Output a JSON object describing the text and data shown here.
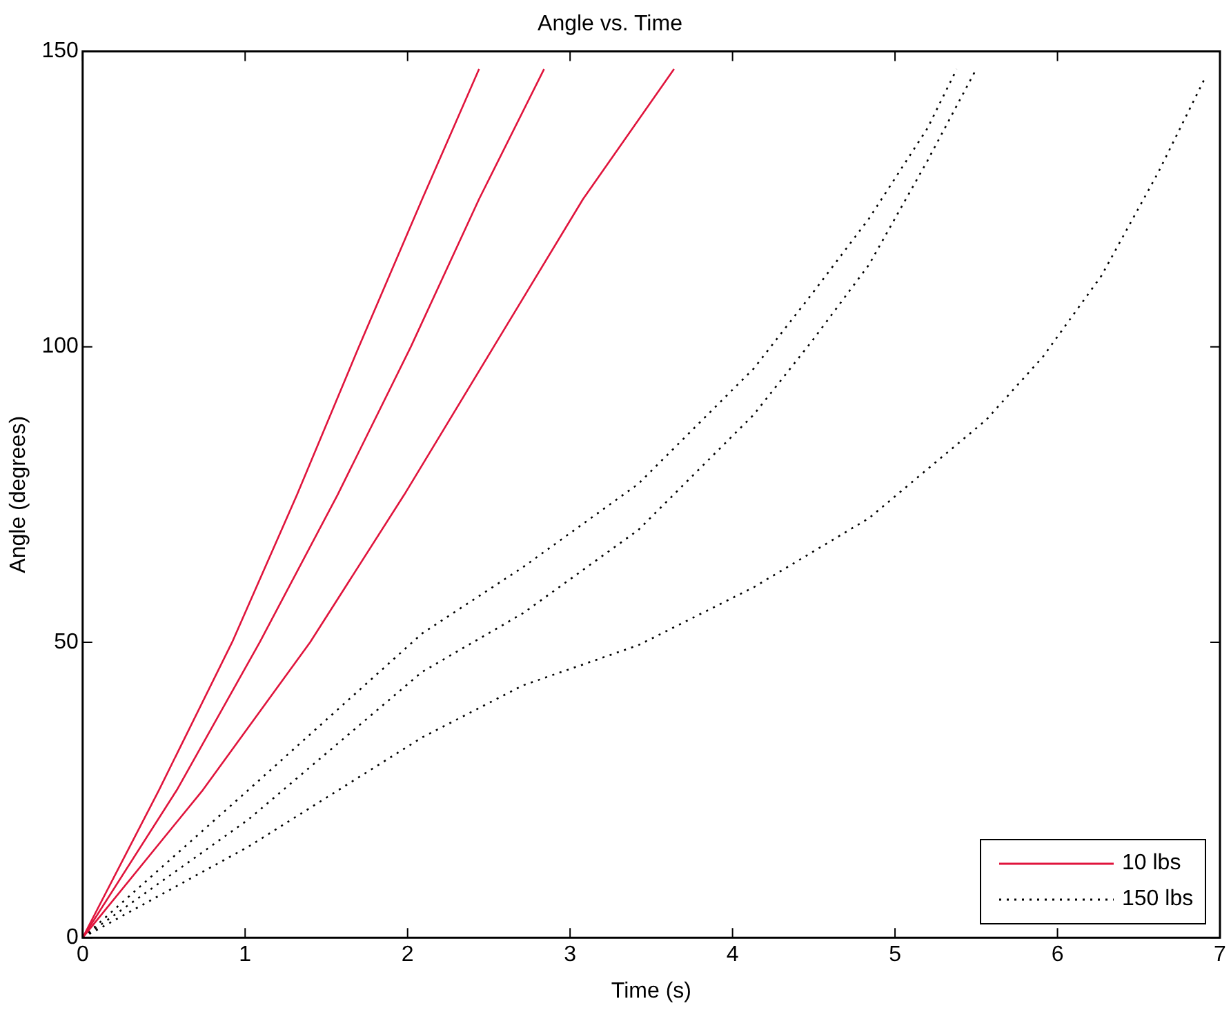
{
  "chart_data": {
    "type": "line",
    "title": "Angle vs. Time",
    "xlabel": "Time (s)",
    "ylabel": "Angle (degrees)",
    "xlim": [
      0,
      7
    ],
    "xticks": [
      0,
      1,
      2,
      3,
      4,
      5,
      6,
      7
    ],
    "ylim": [
      0,
      150
    ],
    "yticks": [
      0,
      50,
      100,
      150
    ],
    "legend": "bottom right",
    "marker": "none",
    "series": [
      {
        "name": "10 lbs",
        "color": "#e0143c",
        "line_style": "solid",
        "x": [
          0,
          0.47,
          0.92,
          1.32,
          1.7,
          2.09,
          2.44
        ],
        "values": [
          0,
          25,
          50,
          75,
          100,
          125,
          147
        ]
      },
      {
        "color": "#e0143c",
        "line_style": "solid",
        "x": [
          0,
          0.58,
          1.09,
          1.57,
          2.02,
          2.44,
          2.84
        ],
        "values": [
          0,
          25,
          50,
          75,
          100,
          125,
          147
        ]
      },
      {
        "color": "#e0143c",
        "line_style": "solid",
        "x": [
          0,
          0.74,
          1.4,
          1.98,
          2.53,
          3.08,
          3.64
        ],
        "values": [
          0,
          25,
          50,
          75,
          100,
          125,
          147
        ]
      },
      {
        "name": "150 lbs",
        "color": "#000000",
        "line_style": "dotted",
        "x": [
          0,
          1.02,
          2.09,
          2.71,
          3.42,
          4.13,
          4.49,
          4.84,
          5.2,
          5.38
        ],
        "values": [
          0,
          25,
          51.5,
          62.7,
          76.8,
          96.3,
          109,
          121.7,
          137,
          147
        ]
      },
      {
        "color": "#000000",
        "line_style": "dotted",
        "x": [
          0,
          1.02,
          2.09,
          2.71,
          3.42,
          4.13,
          4.49,
          4.84,
          5.2,
          5.5
        ],
        "values": [
          0,
          20,
          45,
          54.9,
          69,
          88.5,
          101,
          113.9,
          131.5,
          147
        ]
      },
      {
        "color": "#000000",
        "line_style": "dotted",
        "x": [
          0,
          1.02,
          2.09,
          2.71,
          3.42,
          4.13,
          4.84,
          5.56,
          5.91,
          6.27,
          6.62,
          6.91
        ],
        "values": [
          0,
          15.4,
          33.9,
          42.7,
          49.5,
          59.3,
          71,
          87.6,
          98.3,
          112,
          129.5,
          145.6
        ]
      }
    ]
  }
}
